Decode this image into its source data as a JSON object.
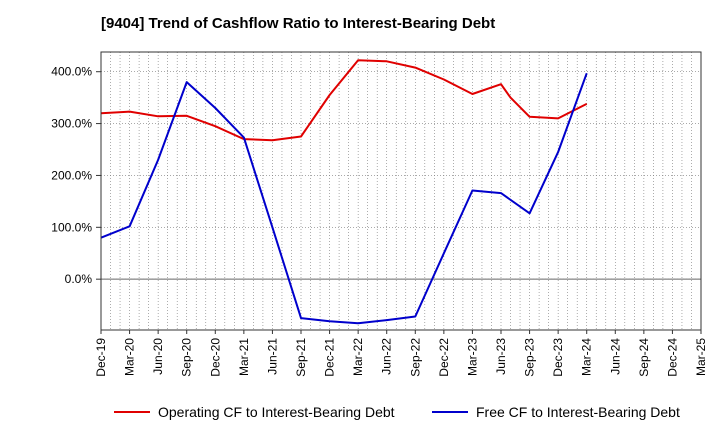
{
  "title": "[9404]  Trend of Cashflow Ratio to Interest-Bearing Debt",
  "chart_data": {
    "type": "line",
    "title": "[9404]  Trend of Cashflow Ratio to Interest-Bearing Debt",
    "xlabel": "",
    "ylabel": "",
    "x_ticks": [
      "Dec-19",
      "Mar-20",
      "Jun-20",
      "Sep-20",
      "Dec-20",
      "Mar-21",
      "Jun-21",
      "Sep-21",
      "Dec-21",
      "Mar-22",
      "Jun-22",
      "Sep-22",
      "Dec-22",
      "Mar-23",
      "Jun-23",
      "Sep-23",
      "Dec-23",
      "Mar-24",
      "Jun-24",
      "Sep-24",
      "Dec-24",
      "Mar-25"
    ],
    "y_ticks": [
      "400.0%",
      "300.0%",
      "200.0%",
      "100.0%",
      "0.0%"
    ],
    "y_tick_values": [
      400,
      300,
      200,
      100,
      0
    ],
    "ylim": [
      -98,
      438
    ],
    "grid": true,
    "legend_position": "bottom",
    "series": [
      {
        "name": "Operating CF to Interest-Bearing Debt",
        "color": "#e00000",
        "x": [
          "Dec-19",
          "Mar-20",
          "Jun-20",
          "Sep-20",
          "Dec-20",
          "Mar-21",
          "Jun-21",
          "Sep-21",
          "Dec-21",
          "Mar-22",
          "Jun-22",
          "Sep-22",
          "Dec-22",
          "Mar-23",
          "Jun-23",
          "Jul-23",
          "Sep-23",
          "Dec-23",
          "Mar-24"
        ],
        "values": [
          320,
          323,
          314,
          315,
          295,
          270,
          268,
          275,
          355,
          422,
          420,
          408,
          385,
          357,
          376,
          350,
          313,
          310,
          338
        ]
      },
      {
        "name": "Free CF to Interest-Bearing Debt",
        "color": "#0000cc",
        "x": [
          "Dec-19",
          "Mar-20",
          "Jun-20",
          "Sep-20",
          "Dec-20",
          "Mar-21",
          "Jun-21",
          "Sep-21",
          "Dec-21",
          "Mar-22",
          "Jun-22",
          "Sep-22",
          "Dec-22",
          "Mar-23",
          "Jun-23",
          "Sep-23",
          "Dec-23",
          "Mar-24"
        ],
        "values": [
          80,
          102,
          230,
          380,
          330,
          273,
          100,
          -75,
          -81,
          -85,
          -79,
          -72,
          50,
          171,
          166,
          127,
          245,
          397
        ]
      }
    ]
  }
}
